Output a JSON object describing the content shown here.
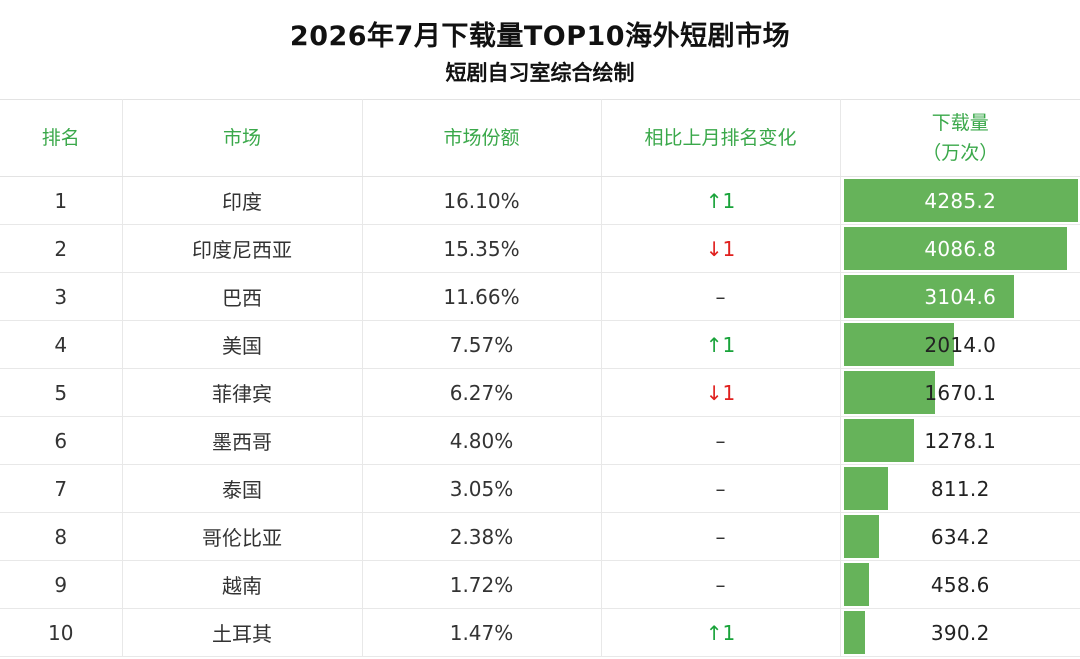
{
  "title": "2026年7月下载量TOP10海外短剧市场",
  "subtitle": "短剧自习室综合绘制",
  "columns": [
    "排名",
    "市场",
    "市场份额",
    "相比上月排名变化",
    "下载量\n（万次）"
  ],
  "colors": {
    "header": "#3aa84a",
    "bar": "#66b35a",
    "up": "#19a33a",
    "down": "#e0201e"
  },
  "chart_data": {
    "type": "table",
    "max_value": 4285.2,
    "rows": [
      {
        "rank": "1",
        "market": "印度",
        "share": "16.10%",
        "change": "↑1",
        "dir": "up",
        "downloads": 4285.2,
        "label": "4285.2"
      },
      {
        "rank": "2",
        "market": "印度尼西亚",
        "share": "15.35%",
        "change": "↓1",
        "dir": "down",
        "downloads": 4086.8,
        "label": "4086.8"
      },
      {
        "rank": "3",
        "market": "巴西",
        "share": "11.66%",
        "change": "–",
        "dir": "same",
        "downloads": 3104.6,
        "label": "3104.6"
      },
      {
        "rank": "4",
        "market": "美国",
        "share": "7.57%",
        "change": "↑1",
        "dir": "up",
        "downloads": 2014.0,
        "label": "2014.0"
      },
      {
        "rank": "5",
        "market": "菲律宾",
        "share": "6.27%",
        "change": "↓1",
        "dir": "down",
        "downloads": 1670.1,
        "label": "1670.1"
      },
      {
        "rank": "6",
        "market": "墨西哥",
        "share": "4.80%",
        "change": "–",
        "dir": "same",
        "downloads": 1278.1,
        "label": "1278.1"
      },
      {
        "rank": "7",
        "market": "泰国",
        "share": "3.05%",
        "change": "–",
        "dir": "same",
        "downloads": 811.2,
        "label": "811.2"
      },
      {
        "rank": "8",
        "market": "哥伦比亚",
        "share": "2.38%",
        "change": "–",
        "dir": "same",
        "downloads": 634.2,
        "label": "634.2"
      },
      {
        "rank": "9",
        "market": "越南",
        "share": "1.72%",
        "change": "–",
        "dir": "same",
        "downloads": 458.6,
        "label": "458.6"
      },
      {
        "rank": "10",
        "market": "土耳其",
        "share": "1.47%",
        "change": "↑1",
        "dir": "up",
        "downloads": 390.2,
        "label": "390.2"
      }
    ]
  }
}
